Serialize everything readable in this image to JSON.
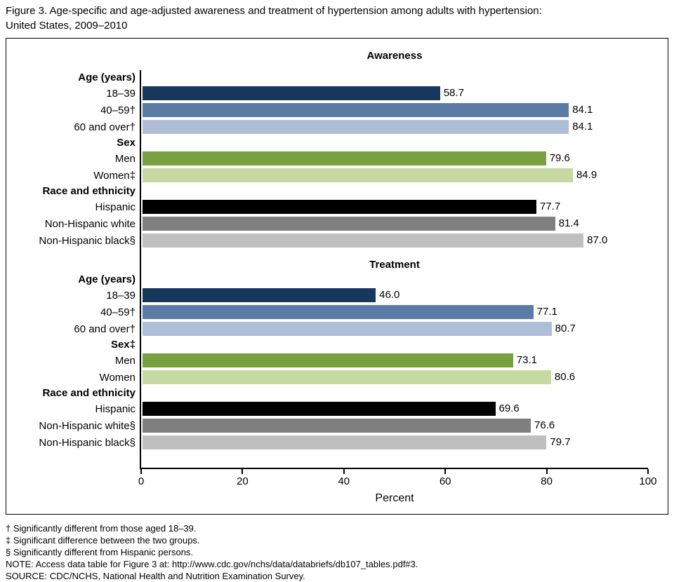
{
  "title": {
    "line1": "Figure 3. Age-specific and age-adjusted awareness and treatment of hypertension among adults with hypertension:",
    "line2": "United States, 2009–2010"
  },
  "chart_data": {
    "type": "bar",
    "orientation": "horizontal",
    "xlabel": "Percent",
    "xlim": [
      0,
      100
    ],
    "xticks": [
      0,
      20,
      40,
      60,
      80,
      100
    ],
    "grid": false,
    "legend": "none",
    "panels": [
      {
        "title": "Awareness",
        "groups": [
          {
            "label": "Age (years)",
            "bars": [
              {
                "label": "18–39",
                "value": 58.7,
                "color": "#17375D"
              },
              {
                "label": "40–59†",
                "value": 84.1,
                "color": "#5B7BA5"
              },
              {
                "label": "60 and over†",
                "value": 84.1,
                "color": "#AFBED8"
              }
            ]
          },
          {
            "label": "Sex",
            "bars": [
              {
                "label": "Men",
                "value": 79.6,
                "color": "#76A13E"
              },
              {
                "label": "Women‡",
                "value": 84.9,
                "color": "#C5D9A0"
              }
            ]
          },
          {
            "label": "Race and ethnicity",
            "bars": [
              {
                "label": "Hispanic",
                "value": 77.7,
                "color": "#000000"
              },
              {
                "label": "Non-Hispanic white",
                "value": 81.4,
                "color": "#7F7F7F"
              },
              {
                "label": "Non-Hispanic black§",
                "value": 87.0,
                "color": "#BFBFBF"
              }
            ]
          }
        ]
      },
      {
        "title": "Treatment",
        "groups": [
          {
            "label": "Age (years)",
            "bars": [
              {
                "label": "18–39",
                "value": 46.0,
                "color": "#17375D"
              },
              {
                "label": "40–59†",
                "value": 77.1,
                "color": "#5B7BA5"
              },
              {
                "label": "60 and over†",
                "value": 80.7,
                "color": "#AFBED8"
              }
            ]
          },
          {
            "label": "Sex‡",
            "bars": [
              {
                "label": "Men",
                "value": 73.1,
                "color": "#76A13E"
              },
              {
                "label": "Women",
                "value": 80.6,
                "color": "#C5D9A0"
              }
            ]
          },
          {
            "label": "Race and ethnicity",
            "bars": [
              {
                "label": "Hispanic",
                "value": 69.6,
                "color": "#000000"
              },
              {
                "label": "Non-Hispanic white§",
                "value": 76.6,
                "color": "#7F7F7F"
              },
              {
                "label": "Non-Hispanic black§",
                "value": 79.7,
                "color": "#BFBFBF"
              }
            ]
          }
        ]
      }
    ]
  },
  "footnotes": [
    "† Significantly different from those aged 18–39.",
    "‡ Significant difference between the two groups.",
    "§ Significantly different from Hispanic persons.",
    "NOTE: Access data table for Figure 3 at: http://www.cdc.gov/nchs/data/databriefs/db107_tables.pdf#3.",
    "SOURCE: CDC/NCHS, National Health and Nutrition Examination Survey."
  ]
}
